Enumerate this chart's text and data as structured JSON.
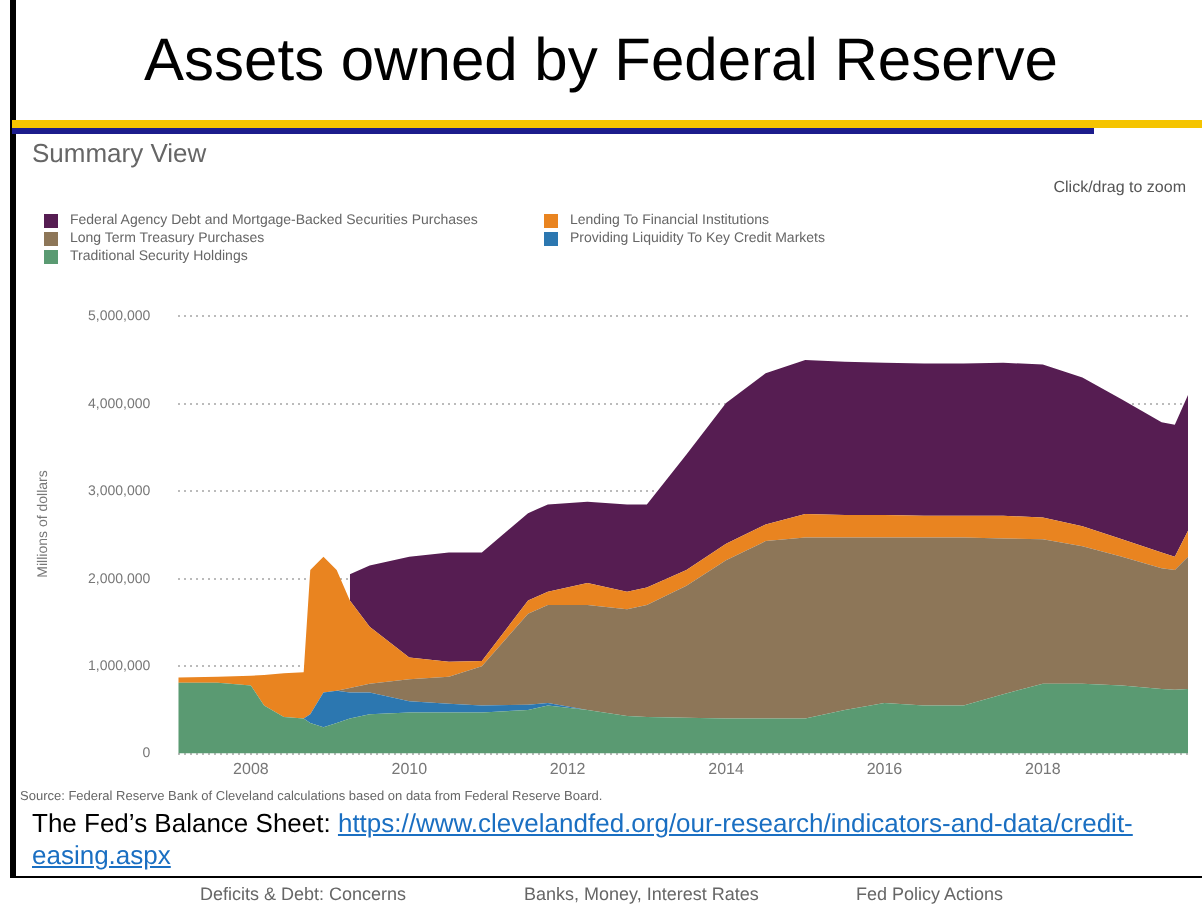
{
  "chart_data": {
    "type": "area",
    "title": "Assets owned by Federal Reserve",
    "subtitle": "Summary View",
    "ylabel": "Millions of dollars",
    "stacked": true,
    "grid": "y",
    "legend": "top left",
    "marker": "none",
    "x": [
      "2007-02",
      "2007-08",
      "2008-01",
      "2008-03",
      "2008-06",
      "2008-09",
      "2008-10",
      "2008-12",
      "2009-02",
      "2009-04",
      "2009-07",
      "2010-01",
      "2010-07",
      "2010-12",
      "2011-07",
      "2011-10",
      "2012-04",
      "2012-10",
      "2013-01",
      "2013-07",
      "2014-01",
      "2014-07",
      "2015-01",
      "2015-07",
      "2016-01",
      "2016-07",
      "2017-01",
      "2017-07",
      "2018-01",
      "2018-07",
      "2019-01",
      "2019-07",
      "2019-09",
      "2019-11"
    ],
    "xlim": [
      "2007-02",
      "2019-11"
    ],
    "xticks": [
      "2008",
      "2010",
      "2012",
      "2014",
      "2016",
      "2018"
    ],
    "ylim": [
      0,
      5000000
    ],
    "yticks": [
      0,
      {
        "value": 1000000,
        "label": "1,000,000"
      },
      {
        "value": 2000000,
        "label": "2,000,000"
      },
      {
        "value": 3000000,
        "label": "3,000,000"
      },
      {
        "value": 4000000,
        "label": "4,000,000"
      },
      {
        "value": 5000000,
        "label": "5,000,000"
      }
    ],
    "series": [
      {
        "name": "Traditional Security Holdings",
        "color": "#5a9a72",
        "values": [
          810000,
          810000,
          780000,
          550000,
          420000,
          400000,
          350000,
          300000,
          350000,
          400000,
          450000,
          470000,
          470000,
          470000,
          500000,
          550000,
          500000,
          430000,
          420000,
          410000,
          400000,
          400000,
          400000,
          500000,
          580000,
          550000,
          550000,
          680000,
          800000,
          800000,
          780000,
          740000,
          730000,
          740000
        ]
      },
      {
        "name": "Providing Liquidity To Key Credit Markets",
        "color": "#2c77b0",
        "values": [
          0,
          0,
          0,
          0,
          0,
          0,
          100000,
          400000,
          370000,
          300000,
          250000,
          130000,
          100000,
          80000,
          60000,
          30000,
          0,
          0,
          0,
          0,
          0,
          0,
          0,
          0,
          0,
          0,
          0,
          0,
          0,
          0,
          0,
          0,
          0,
          0
        ]
      },
      {
        "name": "Long Term Treasury Purchases",
        "color": "#8d7658",
        "values": [
          0,
          0,
          0,
          0,
          0,
          0,
          0,
          0,
          0,
          50000,
          100000,
          250000,
          310000,
          450000,
          1040000,
          1120000,
          1200000,
          1220000,
          1280000,
          1510000,
          1810000,
          2030000,
          2070000,
          1970000,
          1890000,
          1920000,
          1920000,
          1780000,
          1650000,
          1570000,
          1470000,
          1380000,
          1370000,
          1510000
        ]
      },
      {
        "name": "Lending To Financial Institutions",
        "color": "#e98420",
        "values": [
          60000,
          70000,
          110000,
          350000,
          500000,
          530000,
          1650000,
          1550000,
          1380000,
          1000000,
          650000,
          250000,
          170000,
          60000,
          150000,
          150000,
          250000,
          200000,
          200000,
          180000,
          190000,
          190000,
          270000,
          260000,
          260000,
          250000,
          250000,
          260000,
          250000,
          230000,
          200000,
          180000,
          150000,
          300000
        ]
      },
      {
        "name": "Federal Agency Debt and Mortgage-Backed Securities Purchases",
        "color": "#561d52",
        "values": [
          null,
          null,
          null,
          null,
          null,
          null,
          null,
          null,
          null,
          300000,
          700000,
          1150000,
          1250000,
          1240000,
          1000000,
          1000000,
          930000,
          1000000,
          950000,
          1320000,
          1610000,
          1730000,
          1760000,
          1750000,
          1740000,
          1740000,
          1740000,
          1750000,
          1750000,
          1700000,
          1600000,
          1490000,
          1510000,
          1550000
        ]
      }
    ],
    "annotations": [
      "Click/drag to zoom",
      "Source: Federal Reserve Bank of Cleveland calculations based on data from Federal Reserve Board.",
      "The Fed’s Balance Sheet: https://www.clevelandfed.org/our-research/indicators-and-data/credit-easing.aspx",
      "Deficits & Debt: Concerns",
      "Banks, Money, Interest Rates",
      "Fed Policy Actions"
    ]
  }
}
